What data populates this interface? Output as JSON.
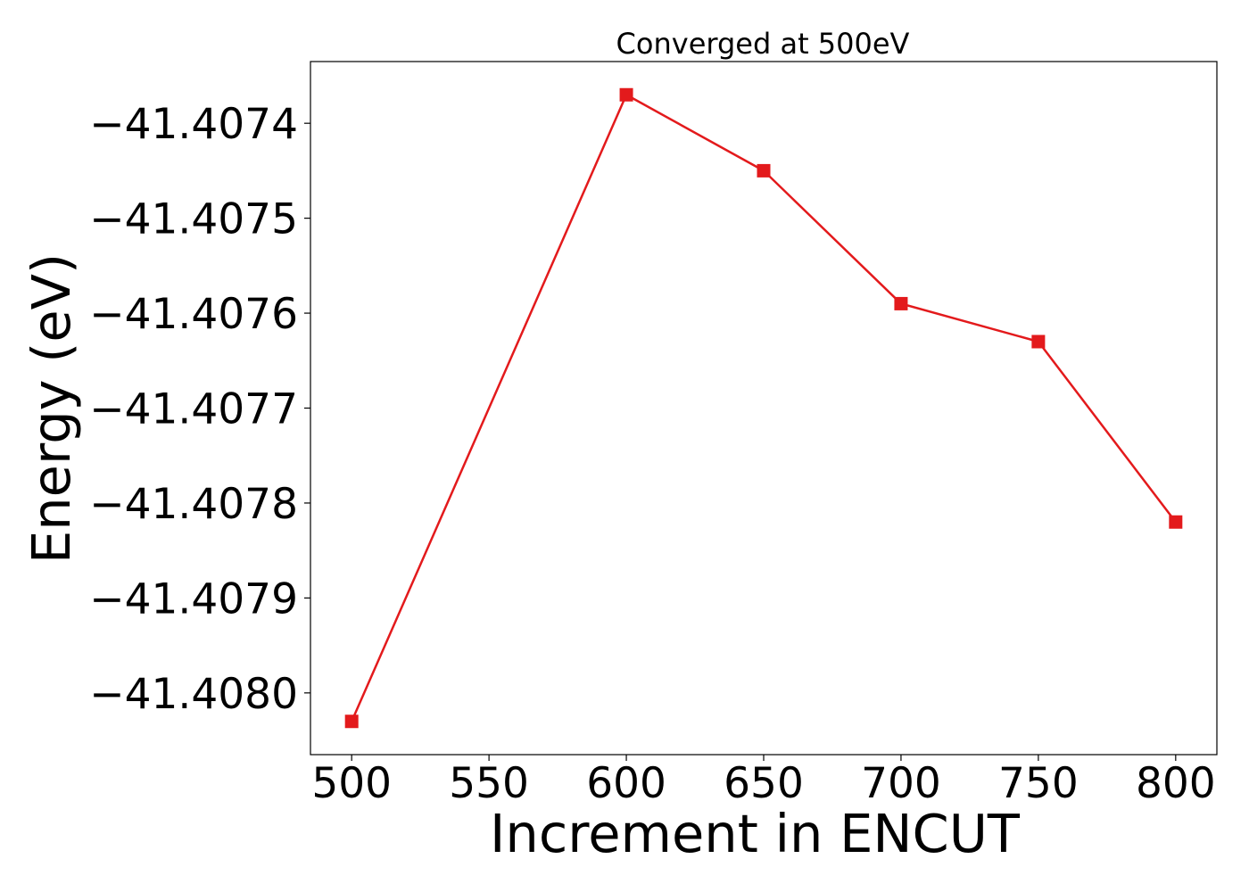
{
  "chart_data": {
    "type": "line",
    "title": "Converged at 500eV",
    "xlabel": "Increment in ENCUT",
    "ylabel": "Energy (eV)",
    "x": [
      500,
      600,
      650,
      700,
      750,
      800
    ],
    "series": [
      {
        "values": [
          -41.40803,
          -41.40737,
          -41.40745,
          -41.40759,
          -41.40763,
          -41.40782
        ],
        "color": "#e31a1c",
        "marker": "square"
      }
    ],
    "xlim": [
      485,
      815
    ],
    "ylim": [
      -41.408065,
      -41.407335
    ],
    "xticks": [
      500,
      550,
      600,
      650,
      700,
      750,
      800
    ],
    "xtick_labels": [
      "500",
      "550",
      "600",
      "650",
      "700",
      "750",
      "800"
    ],
    "yticks": [
      -41.4074,
      -41.4075,
      -41.4076,
      -41.4077,
      -41.4078,
      -41.4079,
      -41.408
    ],
    "ytick_labels": [
      "−41.4074",
      "−41.4075",
      "−41.4076",
      "−41.4077",
      "−41.4078",
      "−41.4079",
      "−41.4080"
    ],
    "grid": false,
    "legend": "none"
  }
}
